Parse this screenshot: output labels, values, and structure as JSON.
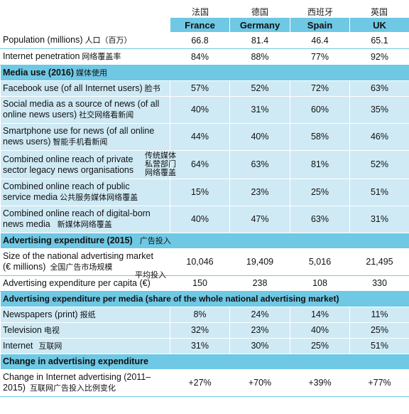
{
  "chinese_headers": [
    "法国",
    "德国",
    "西班牙",
    "英国"
  ],
  "columns": [
    "France",
    "Germany",
    "Spain",
    "UK"
  ],
  "rows_top": [
    {
      "label": "Population (millions)",
      "zh": "人口（百万）",
      "values": [
        "66.8",
        "81.4",
        "46.4",
        "65.1"
      ]
    },
    {
      "label": "Internet penetration",
      "zh": "网络覆盖率",
      "values": [
        "84%",
        "88%",
        "77%",
        "92%"
      ]
    }
  ],
  "section_media": {
    "title": "Media use (2016)",
    "zh": "媒体使用"
  },
  "rows_media": [
    {
      "label": "Facebook use (of all Internet users)",
      "zh": "脸书",
      "values": [
        "57%",
        "52%",
        "72%",
        "63%"
      ]
    },
    {
      "label_line1": "Social media as a source of news (of all",
      "label_line2": "online news users)",
      "zh": "社交网络看新闻",
      "values": [
        "40%",
        "31%",
        "60%",
        "35%"
      ]
    },
    {
      "label_line1": "Smartphone use for news (of all online",
      "label_line2": "news users)",
      "zh": "智能手机看新闻",
      "values": [
        "44%",
        "40%",
        "58%",
        "46%"
      ]
    },
    {
      "label_line1": "Combined online reach of private",
      "label_line2": "sector legacy news organisations",
      "zh_lines": [
        "传统媒体",
        "私营部门",
        "网络覆盖"
      ],
      "values": [
        "64%",
        "63%",
        "81%",
        "52%"
      ]
    },
    {
      "label_line1": "Combined online reach of public",
      "label_line2": "service media",
      "zh": "公共服务媒体网络覆盖",
      "values": [
        "15%",
        "23%",
        "25%",
        "51%"
      ]
    },
    {
      "label_line1": "Combined online reach of digital-born",
      "label_line2": "news media",
      "zh": "新媒体网络覆盖",
      "values": [
        "40%",
        "47%",
        "63%",
        "31%"
      ]
    }
  ],
  "section_adexp": {
    "title": "Advertising expenditure (2015)",
    "zh": "广告投入"
  },
  "rows_adexp": [
    {
      "label_line1": "Size of the national advertising market",
      "label_line2": "(€ millions)",
      "zh": "全国广告市场规模",
      "values": [
        "10,046",
        "19,409",
        "5,016",
        "21,495"
      ]
    },
    {
      "label": "Advertising expenditure per capita (€)",
      "zh": "平均投入",
      "values": [
        "150",
        "238",
        "108",
        "330"
      ]
    }
  ],
  "section_permedia": {
    "title": "Advertising expenditure per media (share of the whole national advertising market)"
  },
  "rows_permedia": [
    {
      "label": "Newspapers (print)",
      "zh": "报纸",
      "values": [
        "8%",
        "24%",
        "14%",
        "11%"
      ]
    },
    {
      "label": "Television",
      "zh": "电视",
      "values": [
        "32%",
        "23%",
        "40%",
        "25%"
      ]
    },
    {
      "label": "Internet",
      "zh": "互联网",
      "values": [
        "31%",
        "30%",
        "25%",
        "51%"
      ]
    }
  ],
  "section_change": {
    "title": "Change in advertising expenditure"
  },
  "rows_change": [
    {
      "label_line1": "Change in Internet advertising (2011–",
      "label_line2": "2015)",
      "zh": "互联网广告投入比例变化",
      "values": [
        "+27%",
        "+70%",
        "+39%",
        "+77%"
      ]
    }
  ],
  "colors": {
    "header_blue": "#6fc8e4",
    "row_light": "#cfeaf5"
  }
}
